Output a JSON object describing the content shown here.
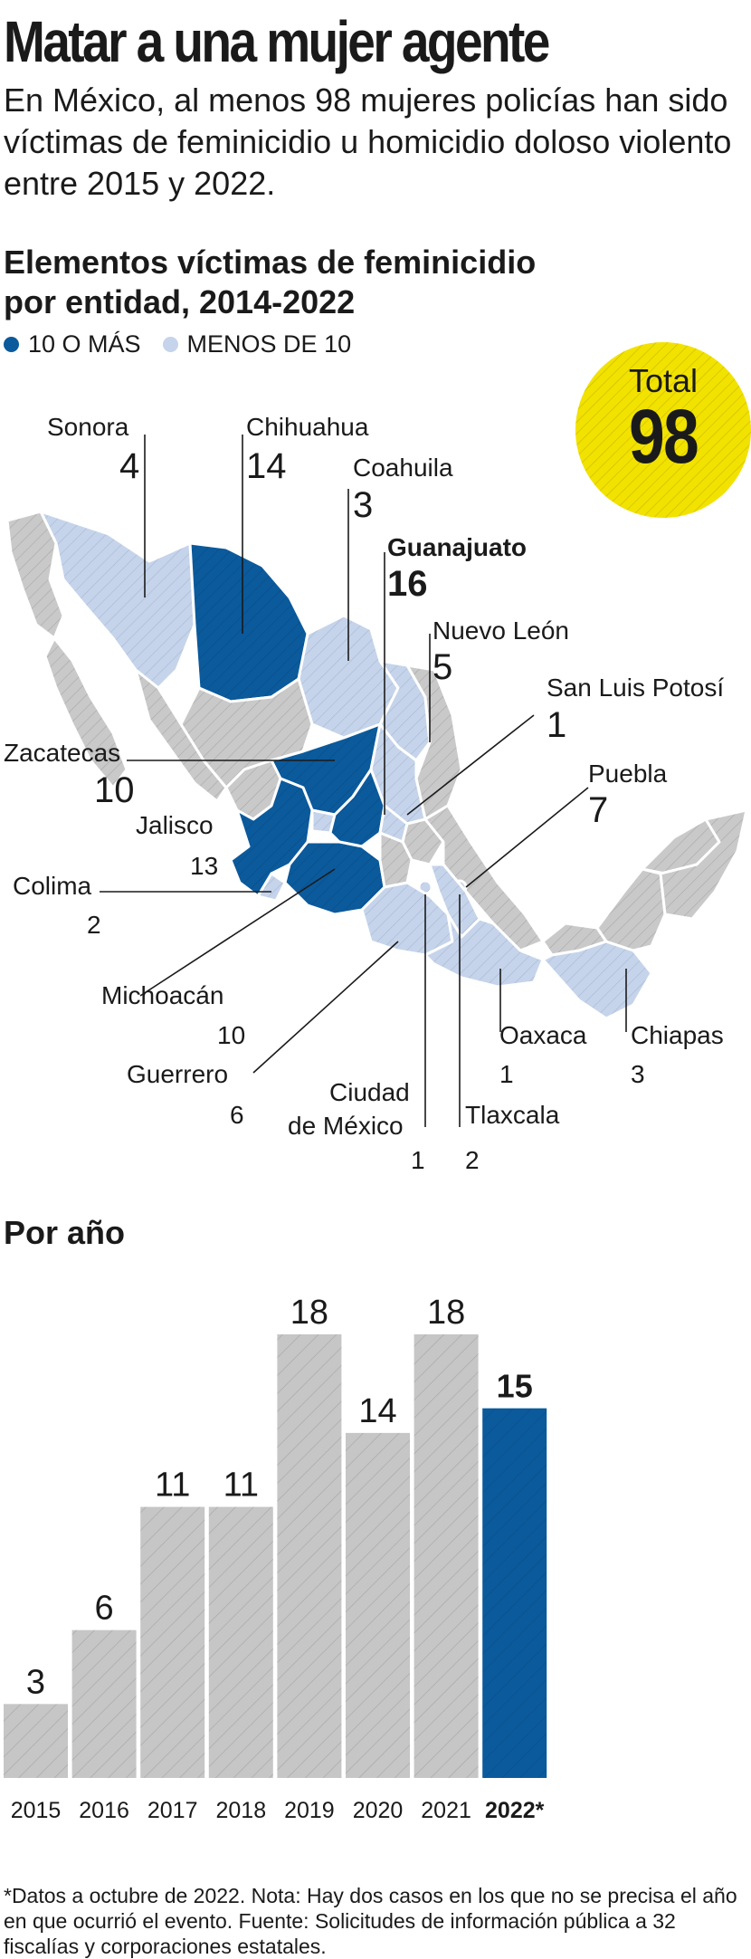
{
  "header": {
    "title": "Matar a una mujer agente",
    "subtitle": "En México, al menos 98 mujeres policías han sido víctimas de feminicidio u homicidio doloso violento entre 2015 y 2022."
  },
  "map": {
    "title_line1": "Elementos víctimas de feminicidio",
    "title_line2": "por entidad, 2014-2022",
    "legend": {
      "high": "10 O MÁS",
      "low": "MENOS DE 10"
    },
    "total_label": "Total",
    "total_value": "98",
    "colors": {
      "high": "#0b5a9c",
      "low": "#c5d4ea",
      "other": "#c9c9c9",
      "total_bg": "#f2e200"
    },
    "states": [
      {
        "name": "Sonora",
        "value": "4"
      },
      {
        "name": "Chihuahua",
        "value": "14"
      },
      {
        "name": "Coahuila",
        "value": "3"
      },
      {
        "name": "Guanajuato",
        "value": "16"
      },
      {
        "name": "Nuevo León",
        "value": "5"
      },
      {
        "name": "San Luis Potosí",
        "value": "1"
      },
      {
        "name": "Zacatecas",
        "value": "10"
      },
      {
        "name": "Puebla",
        "value": "7"
      },
      {
        "name": "Jalisco",
        "value": "13"
      },
      {
        "name": "Colima",
        "value": "2"
      },
      {
        "name": "Michoacán",
        "value": "10"
      },
      {
        "name": "Guerrero",
        "value": "6"
      },
      {
        "name": "Oaxaca",
        "value": "1"
      },
      {
        "name": "Chiapas",
        "value": "3"
      },
      {
        "name": "Ciudad",
        "name2": "de México",
        "value": "1"
      },
      {
        "name": "Tlaxcala",
        "value": "2"
      }
    ]
  },
  "chart_data": {
    "type": "bar",
    "title": "Por año",
    "categories": [
      "2015",
      "2016",
      "2017",
      "2018",
      "2019",
      "2020",
      "2021",
      "2022*"
    ],
    "values": [
      3,
      6,
      11,
      11,
      18,
      14,
      18,
      15
    ],
    "highlight_index": 7,
    "colors": {
      "bar": "#c6c6c6",
      "highlight": "#0b5a9c"
    },
    "ylim": [
      0,
      18
    ]
  },
  "footnote": "*Datos a octubre de 2022. Nota: Hay dos casos en los que no se precisa el año en que ocurrió el evento. Fuente: Solicitudes de información pública a 32 fiscalías y corporaciones estatales."
}
